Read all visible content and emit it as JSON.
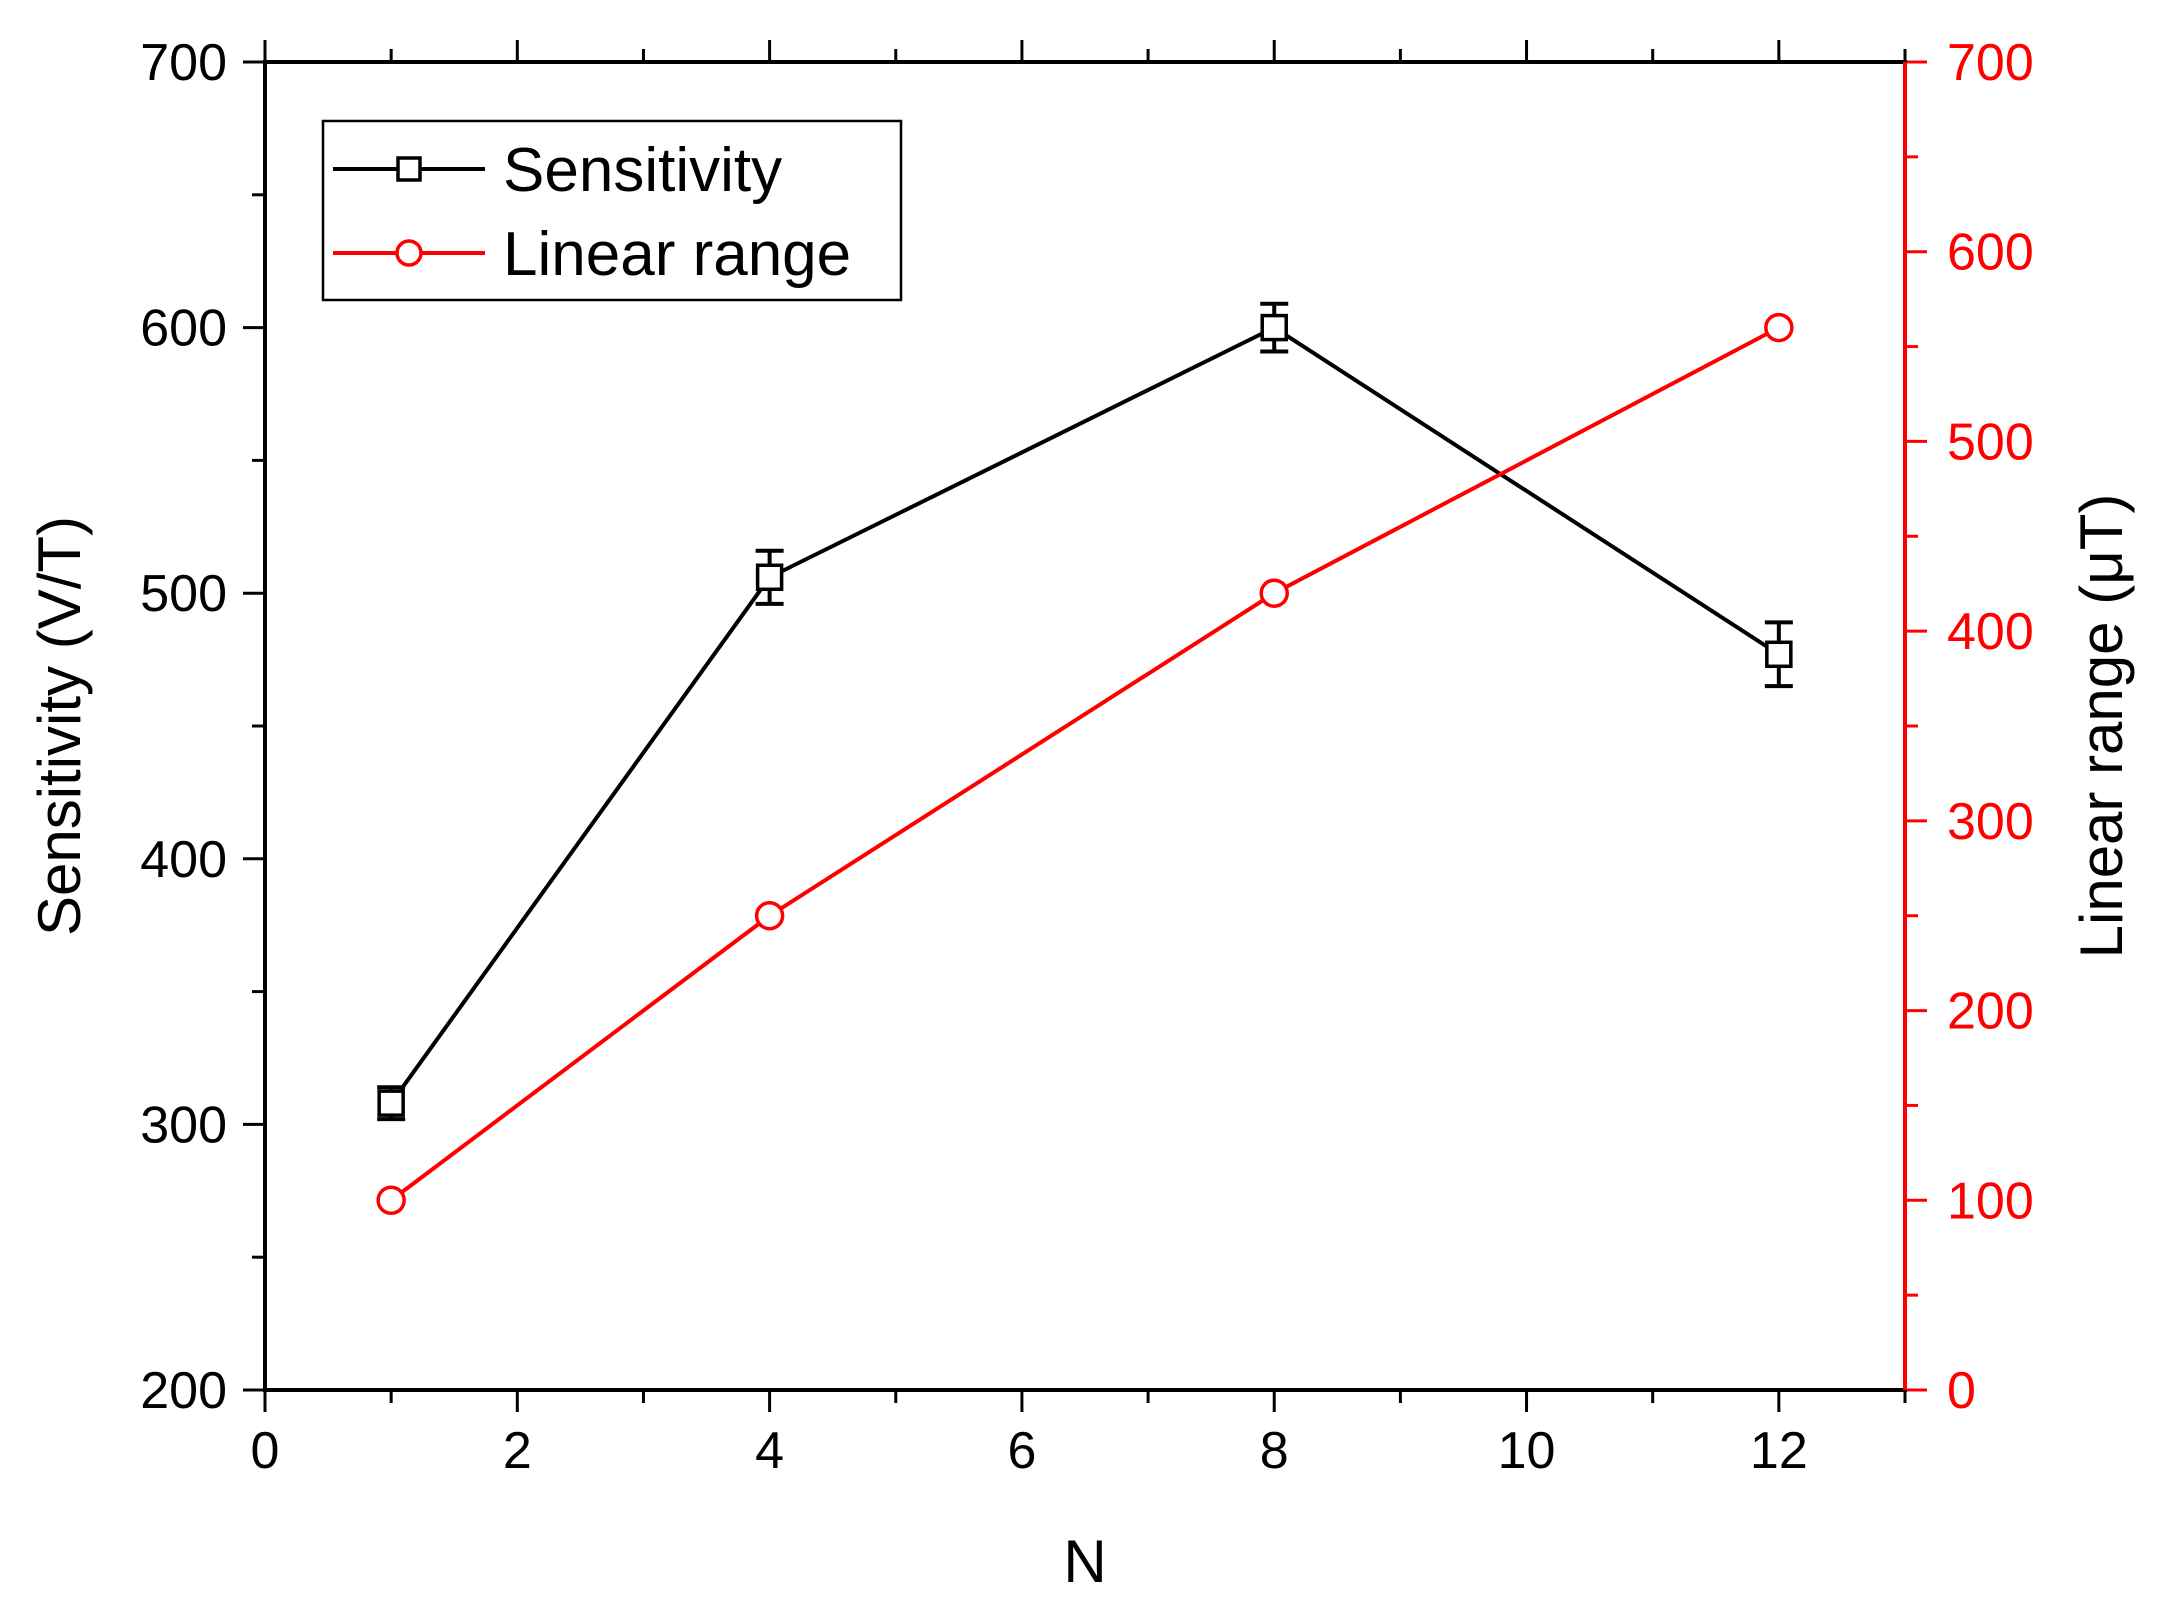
{
  "chart_data": {
    "type": "line",
    "x": [
      1,
      4,
      8,
      12
    ],
    "xlim": [
      0,
      13
    ],
    "xticks": [
      0,
      2,
      4,
      6,
      8,
      10,
      12
    ],
    "xlabel": "N",
    "series": [
      {
        "name": "Sensitivity",
        "axis": "left",
        "values": [
          308,
          506,
          600,
          477
        ],
        "errors": [
          6,
          10,
          9,
          12
        ],
        "marker": "square",
        "color": "#000000"
      },
      {
        "name": "Linear range",
        "axis": "right",
        "values": [
          100,
          250,
          420,
          560
        ],
        "marker": "circle",
        "color": "#ff0000"
      }
    ],
    "left_axis": {
      "label": "Sensitivity (V/T)",
      "ylim": [
        200,
        700
      ],
      "ticks": [
        200,
        300,
        400,
        500,
        600,
        700
      ],
      "color": "#000000"
    },
    "right_axis": {
      "label": "Linear range (μT)",
      "ylim": [
        0,
        700
      ],
      "ticks": [
        0,
        100,
        200,
        300,
        400,
        500,
        600,
        700
      ],
      "color": "#ff0000"
    },
    "legend": {
      "placement": "top-left",
      "entries": [
        "Sensitivity",
        "Linear range"
      ]
    }
  }
}
